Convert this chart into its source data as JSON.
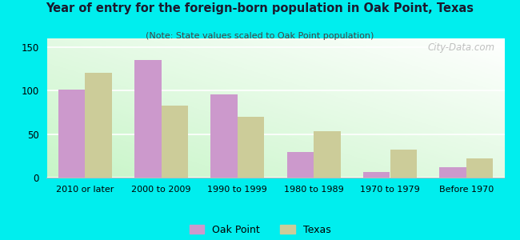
{
  "categories": [
    "2010 or later",
    "2000 to 2009",
    "1990 to 1999",
    "1980 to 1989",
    "1970 to 1979",
    "Before 1970"
  ],
  "oak_point": [
    101,
    135,
    96,
    29,
    6,
    12
  ],
  "texas": [
    120,
    83,
    70,
    53,
    32,
    22
  ],
  "oak_point_color": "#cc99cc",
  "texas_color": "#cccc99",
  "title": "Year of entry for the foreign-born population in Oak Point, Texas",
  "subtitle": "(Note: State values scaled to Oak Point population)",
  "ylim": [
    0,
    160
  ],
  "yticks": [
    0,
    50,
    100,
    150
  ],
  "legend_labels": [
    "Oak Point",
    "Texas"
  ],
  "bg_color": "#00eeee",
  "plot_bg_gradient_bottom": "#c8eec8",
  "plot_bg_gradient_top": "#f8ffff",
  "bar_width": 0.35,
  "watermark": "City-Data.com"
}
